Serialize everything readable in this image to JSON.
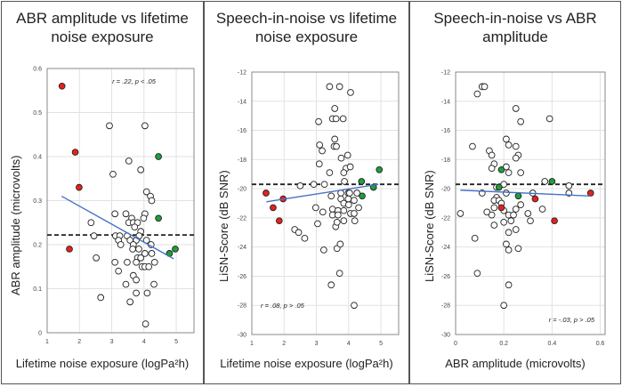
{
  "chart_data": [
    {
      "type": "scatter",
      "title": "ABR amplitude vs lifetime noise exposure",
      "xlabel": "Lifetime noise exposure (logPa²h)",
      "ylabel": "ABR amplitude (microvolts)",
      "xlim": [
        1,
        5.55
      ],
      "ylim": [
        0,
        0.6
      ],
      "xticks": [
        1,
        2,
        3,
        4,
        5
      ],
      "yticks": [
        0,
        0.1,
        0.2,
        0.3,
        0.4,
        0.5,
        0.6
      ],
      "xtick_labels": [
        "1",
        "2",
        "3",
        "4",
        "5"
      ],
      "ytick_labels": [
        "0",
        "0.1",
        "0.2",
        "0.3",
        "0.4",
        "0.5",
        "0.6"
      ],
      "grid": true,
      "annotation": "r = .22, p < .05",
      "reference_line": 0.222,
      "fit_line": [
        [
          1.45,
          0.31
        ],
        [
          4.92,
          0.168
        ]
      ],
      "colors": {
        "red": "#e8201c",
        "green": "#1f9e3a",
        "open": "#ffffff",
        "fit": "#4472c4"
      },
      "red_points": [
        [
          1.46,
          0.56
        ],
        [
          1.87,
          0.41
        ],
        [
          1.99,
          0.33
        ],
        [
          1.69,
          0.19
        ]
      ],
      "green_points": [
        [
          4.45,
          0.4
        ],
        [
          4.45,
          0.26
        ],
        [
          4.79,
          0.18
        ],
        [
          4.97,
          0.19
        ]
      ],
      "open_points": [
        [
          2.93,
          0.47
        ],
        [
          4.03,
          0.47
        ],
        [
          3.53,
          0.39
        ],
        [
          3.9,
          0.37
        ],
        [
          3.04,
          0.36
        ],
        [
          4.08,
          0.32
        ],
        [
          4.2,
          0.31
        ],
        [
          4.24,
          0.3
        ],
        [
          2.36,
          0.25
        ],
        [
          3.1,
          0.27
        ],
        [
          3.44,
          0.27
        ],
        [
          4.03,
          0.27
        ],
        [
          3.99,
          0.26
        ],
        [
          3.62,
          0.26
        ],
        [
          3.53,
          0.25
        ],
        [
          3.67,
          0.25
        ],
        [
          3.8,
          0.25
        ],
        [
          3.71,
          0.24
        ],
        [
          3.9,
          0.23
        ],
        [
          2.45,
          0.22
        ],
        [
          3.12,
          0.22
        ],
        [
          3.25,
          0.22
        ],
        [
          3.48,
          0.22
        ],
        [
          3.85,
          0.22
        ],
        [
          3.21,
          0.21
        ],
        [
          3.57,
          0.21
        ],
        [
          3.76,
          0.21
        ],
        [
          4.08,
          0.21
        ],
        [
          3.28,
          0.2
        ],
        [
          3.67,
          0.2
        ],
        [
          4.22,
          0.2
        ],
        [
          3.65,
          0.19
        ],
        [
          3.84,
          0.19
        ],
        [
          4.03,
          0.18
        ],
        [
          4.24,
          0.18
        ],
        [
          3.8,
          0.17
        ],
        [
          3.9,
          0.17
        ],
        [
          2.52,
          0.17
        ],
        [
          3.1,
          0.16
        ],
        [
          3.48,
          0.16
        ],
        [
          3.76,
          0.16
        ],
        [
          4.33,
          0.16
        ],
        [
          3.94,
          0.15
        ],
        [
          4.03,
          0.15
        ],
        [
          4.15,
          0.15
        ],
        [
          3.21,
          0.14
        ],
        [
          3.67,
          0.13
        ],
        [
          3.76,
          0.12
        ],
        [
          3.44,
          0.11
        ],
        [
          4.31,
          0.11
        ],
        [
          3.76,
          0.09
        ],
        [
          4.1,
          0.09
        ],
        [
          2.66,
          0.08
        ],
        [
          3.57,
          0.07
        ],
        [
          4.05,
          0.02
        ]
      ]
    },
    {
      "type": "scatter",
      "title": "Speech-in-noise vs lifetime noise exposure",
      "xlabel": "Lifetime noise exposure (logPa²h)",
      "ylabel": "LiSN-Score (dB SNR)",
      "xlim": [
        1,
        5.55
      ],
      "ylim": [
        -30,
        -12
      ],
      "xticks": [
        1,
        2,
        3,
        4,
        5
      ],
      "yticks": [
        -30,
        -28,
        -26,
        -24,
        -22,
        -20,
        -18,
        -16,
        -14,
        -12
      ],
      "xtick_labels": [
        "1",
        "2",
        "3",
        "4",
        "5"
      ],
      "ytick_labels": [
        "-30",
        "-28",
        "-26",
        "-24",
        "-22",
        "-20",
        "-18",
        "-16",
        "-14",
        "-12"
      ],
      "grid": true,
      "annotation": "r = .08, p > .05",
      "reference_line": -19.7,
      "fit_line": [
        [
          1.45,
          -20.9
        ],
        [
          4.92,
          -19.7
        ]
      ],
      "colors": {
        "red": "#e8201c",
        "green": "#1f9e3a",
        "open": "#ffffff",
        "fit": "#4472c4"
      },
      "red_points": [
        [
          1.44,
          -20.3
        ],
        [
          1.66,
          -21.3
        ],
        [
          1.85,
          -22.2
        ],
        [
          1.97,
          -20.7
        ]
      ],
      "green_points": [
        [
          4.4,
          -19.5
        ],
        [
          4.42,
          -20.5
        ],
        [
          4.77,
          -19.9
        ],
        [
          4.95,
          -18.7
        ]
      ],
      "open_points": [
        [
          3.41,
          -13
        ],
        [
          3.72,
          -13
        ],
        [
          4.06,
          -13.4
        ],
        [
          3.57,
          -14.5
        ],
        [
          3.5,
          -15.2
        ],
        [
          3.61,
          -15.2
        ],
        [
          3.83,
          -15.2
        ],
        [
          3.07,
          -15.4
        ],
        [
          3.57,
          -16.6
        ],
        [
          3.55,
          -17.1
        ],
        [
          3.62,
          -17.1
        ],
        [
          3.1,
          -17
        ],
        [
          3.18,
          -17.4
        ],
        [
          3.77,
          -17.9
        ],
        [
          3.97,
          -17.7
        ],
        [
          3.09,
          -18.3
        ],
        [
          3.92,
          -18.6
        ],
        [
          4.05,
          -18.5
        ],
        [
          3.41,
          -18.9
        ],
        [
          3.85,
          -18.9
        ],
        [
          3.87,
          -19.5
        ],
        [
          2.5,
          -19.8
        ],
        [
          2.92,
          -19.7
        ],
        [
          3.25,
          -19.7
        ],
        [
          3.46,
          -20.5
        ],
        [
          3.76,
          -20.3
        ],
        [
          3.99,
          -20.3
        ],
        [
          4.03,
          -20.3
        ],
        [
          4.26,
          -20.3
        ],
        [
          3.76,
          -20.7
        ],
        [
          3.99,
          -20.7
        ],
        [
          3.85,
          -21
        ],
        [
          4,
          -21.1
        ],
        [
          4.17,
          -20.8
        ],
        [
          2.98,
          -21.3
        ],
        [
          3.2,
          -21.6
        ],
        [
          3.5,
          -21.4
        ],
        [
          3.67,
          -21.5
        ],
        [
          3.85,
          -21.5
        ],
        [
          4.31,
          -21.3
        ],
        [
          3.5,
          -21.8
        ],
        [
          3.67,
          -21.8
        ],
        [
          4.06,
          -21.7
        ],
        [
          4.17,
          -21.7
        ],
        [
          3.04,
          -22.4
        ],
        [
          3.85,
          -22.2
        ],
        [
          4.19,
          -22.2
        ],
        [
          3.6,
          -22.6
        ],
        [
          3.64,
          -22.3
        ],
        [
          2.33,
          -22.8
        ],
        [
          2.45,
          -23
        ],
        [
          2.64,
          -23.4
        ],
        [
          3.23,
          -24.2
        ],
        [
          3.64,
          -24.1
        ],
        [
          3.74,
          -23.8
        ],
        [
          3.72,
          -25.8
        ],
        [
          3.46,
          -26.6
        ],
        [
          4.17,
          -28
        ]
      ]
    },
    {
      "type": "scatter",
      "title": "Speech-in-noise vs ABR amplitude",
      "xlabel": "ABR amplitude (microvolts)",
      "ylabel": "LiSN-Score (dB SNR)",
      "xlim": [
        0,
        0.62
      ],
      "ylim": [
        -30,
        -12
      ],
      "xticks": [
        0,
        0.2,
        0.4,
        0.6
      ],
      "yticks": [
        -30,
        -28,
        -26,
        -24,
        -22,
        -20,
        -18,
        -16,
        -14,
        -12
      ],
      "xtick_labels": [
        "0",
        "0.2",
        "0.4",
        "0.6"
      ],
      "ytick_labels": [
        "-30",
        "-28",
        "-26",
        "-24",
        "-22",
        "-20",
        "-18",
        "-16",
        "-14",
        "-12"
      ],
      "grid": true,
      "annotation": "r = -.03, p > .05",
      "reference_line": -19.7,
      "fit_line": [
        [
          0.02,
          -20.1
        ],
        [
          0.56,
          -20.5
        ]
      ],
      "colors": {
        "red": "#e8201c",
        "green": "#1f9e3a",
        "open": "#ffffff",
        "fit": "#4472c4"
      },
      "red_points": [
        [
          0.56,
          -20.3
        ],
        [
          0.33,
          -20.7
        ],
        [
          0.41,
          -22.2
        ],
        [
          0.19,
          -21.3
        ]
      ],
      "green_points": [
        [
          0.19,
          -18.7
        ],
        [
          0.18,
          -19.9
        ],
        [
          0.26,
          -20.5
        ],
        [
          0.4,
          -19.5
        ]
      ],
      "open_points": [
        [
          0.11,
          -13
        ],
        [
          0.12,
          -13
        ],
        [
          0.09,
          -13.5
        ],
        [
          0.25,
          -14.5
        ],
        [
          0.39,
          -15.2
        ],
        [
          0.27,
          -15.4
        ],
        [
          0.07,
          -17.1
        ],
        [
          0.21,
          -16.6
        ],
        [
          0.22,
          -17
        ],
        [
          0.25,
          -17.1
        ],
        [
          0.14,
          -17.4
        ],
        [
          0.15,
          -17.7
        ],
        [
          0.26,
          -17.7
        ],
        [
          0.25,
          -17.9
        ],
        [
          0.16,
          -18.3
        ],
        [
          0.15,
          -18.6
        ],
        [
          0.21,
          -18.5
        ],
        [
          0.22,
          -18.9
        ],
        [
          0.27,
          -18.9
        ],
        [
          0.37,
          -19.5
        ],
        [
          0.2,
          -19.7
        ],
        [
          0.17,
          -19.9
        ],
        [
          0.47,
          -19.8
        ],
        [
          0.47,
          -20.3
        ],
        [
          0.11,
          -20.3
        ],
        [
          0.21,
          -20.3
        ],
        [
          0.32,
          -20.3
        ],
        [
          0.17,
          -20.6
        ],
        [
          0.16,
          -20.8
        ],
        [
          0.18,
          -20.8
        ],
        [
          0.27,
          -21.1
        ],
        [
          0.19,
          -21
        ],
        [
          0.16,
          -21.3
        ],
        [
          0.2,
          -21.5
        ],
        [
          0.25,
          -21.4
        ],
        [
          0.36,
          -21.4
        ],
        [
          0.13,
          -21.6
        ],
        [
          0.3,
          -21.7
        ],
        [
          0.02,
          -21.7
        ],
        [
          0.15,
          -21.8
        ],
        [
          0.22,
          -21.8
        ],
        [
          0.24,
          -21.8
        ],
        [
          0.31,
          -22.2
        ],
        [
          0.23,
          -22.2
        ],
        [
          0.2,
          -22.3
        ],
        [
          0.16,
          -22.5
        ],
        [
          0.25,
          -22.8
        ],
        [
          0.22,
          -23
        ],
        [
          0.08,
          -23.4
        ],
        [
          0.21,
          -23.8
        ],
        [
          0.26,
          -24.1
        ],
        [
          0.22,
          -24.2
        ],
        [
          0.09,
          -25.8
        ],
        [
          0.22,
          -26.6
        ],
        [
          0.2,
          -28
        ]
      ]
    }
  ]
}
